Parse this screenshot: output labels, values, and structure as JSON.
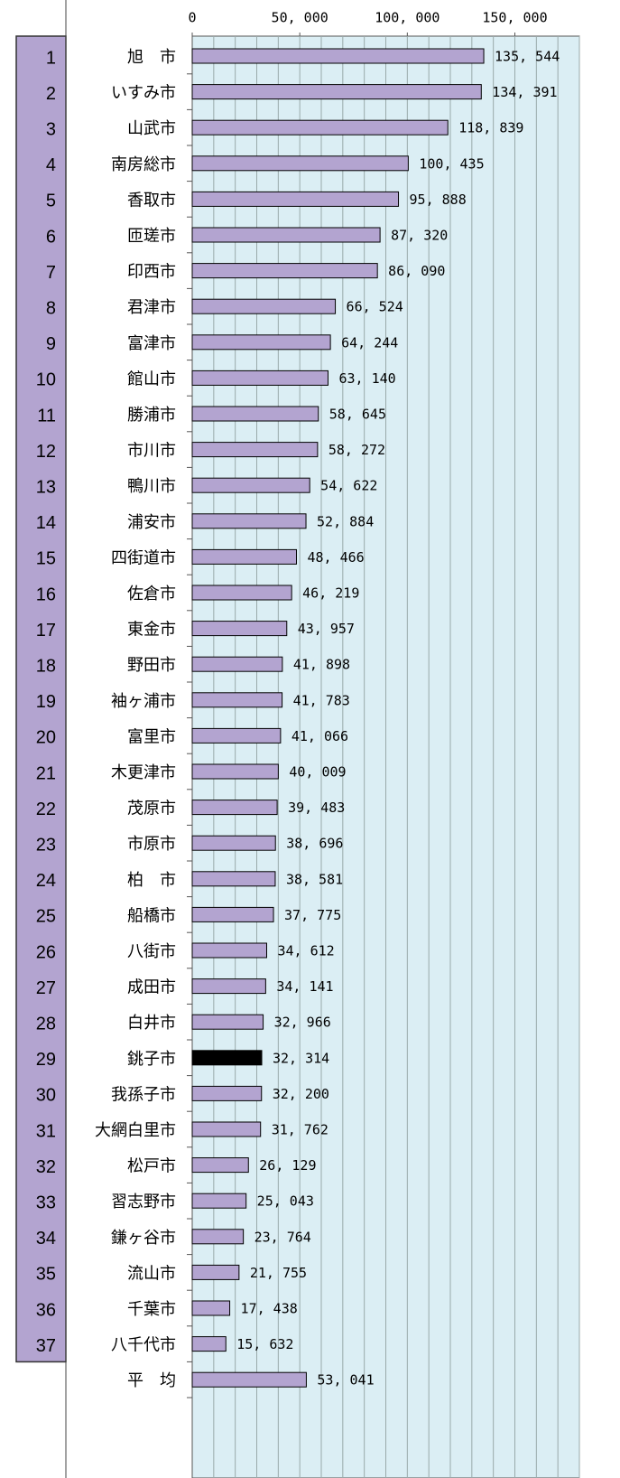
{
  "chart_data": {
    "type": "bar",
    "orientation": "horizontal",
    "ranks": [
      1,
      2,
      3,
      4,
      5,
      6,
      7,
      8,
      9,
      10,
      11,
      12,
      13,
      14,
      15,
      16,
      17,
      18,
      19,
      20,
      21,
      22,
      23,
      24,
      25,
      26,
      27,
      28,
      29,
      30,
      31,
      32,
      33,
      34,
      35,
      36,
      37
    ],
    "categories": [
      "旭　市",
      "いすみ市",
      "山武市",
      "南房総市",
      "香取市",
      "匝瑳市",
      "印西市",
      "君津市",
      "富津市",
      "館山市",
      "勝浦市",
      "市川市",
      "鴨川市",
      "浦安市",
      "四街道市",
      "佐倉市",
      "東金市",
      "野田市",
      "袖ヶ浦市",
      "富里市",
      "木更津市",
      "茂原市",
      "市原市",
      "柏　市",
      "船橋市",
      "八街市",
      "成田市",
      "白井市",
      "銚子市",
      "我孫子市",
      "大網白里市",
      "松戸市",
      "習志野市",
      "鎌ヶ谷市",
      "流山市",
      "千葉市",
      "八千代市",
      "平　均"
    ],
    "values": [
      135544,
      134391,
      118839,
      100435,
      95888,
      87320,
      86090,
      66524,
      64244,
      63140,
      58645,
      58272,
      54622,
      52884,
      48466,
      46219,
      43957,
      41898,
      41783,
      41066,
      40009,
      39483,
      38696,
      38581,
      37775,
      34612,
      34141,
      32966,
      32314,
      32200,
      31762,
      26129,
      25043,
      23764,
      21755,
      17438,
      15632,
      53041
    ],
    "value_labels": [
      "135, 544",
      "134, 391",
      "118, 839",
      "100, 435",
      "95, 888",
      "87, 320",
      "86, 090",
      "66, 524",
      "64, 244",
      "63, 140",
      "58, 645",
      "58, 272",
      "54, 622",
      "52, 884",
      "48, 466",
      "46, 219",
      "43, 957",
      "41, 898",
      "41, 783",
      "41, 066",
      "40, 009",
      "39, 483",
      "38, 696",
      "38, 581",
      "37, 775",
      "34, 612",
      "34, 141",
      "32, 966",
      "32, 314",
      "32, 200",
      "31, 762",
      "26, 129",
      "25, 043",
      "23, 764",
      "21, 755",
      "17, 438",
      "15, 632",
      "53, 041"
    ],
    "color": "#b3a4d0",
    "highlight_category": "銚子市",
    "highlight_color": "#000000",
    "plot_background": "#dbeef4",
    "rank_background": "#b3a4d0",
    "xlim": [
      0,
      180000
    ],
    "xticks": [
      0,
      {
        "value": 50000,
        "label": "50, 000"
      },
      {
        "value": 100000,
        "label": "100, 000"
      },
      {
        "value": 150000,
        "label": "150, 000"
      }
    ],
    "xgrid": [
      10000,
      20000,
      30000,
      40000,
      50000,
      60000,
      70000,
      80000,
      90000,
      100000,
      110000,
      120000,
      130000,
      140000,
      150000,
      160000,
      170000,
      180000
    ],
    "grid": true
  }
}
